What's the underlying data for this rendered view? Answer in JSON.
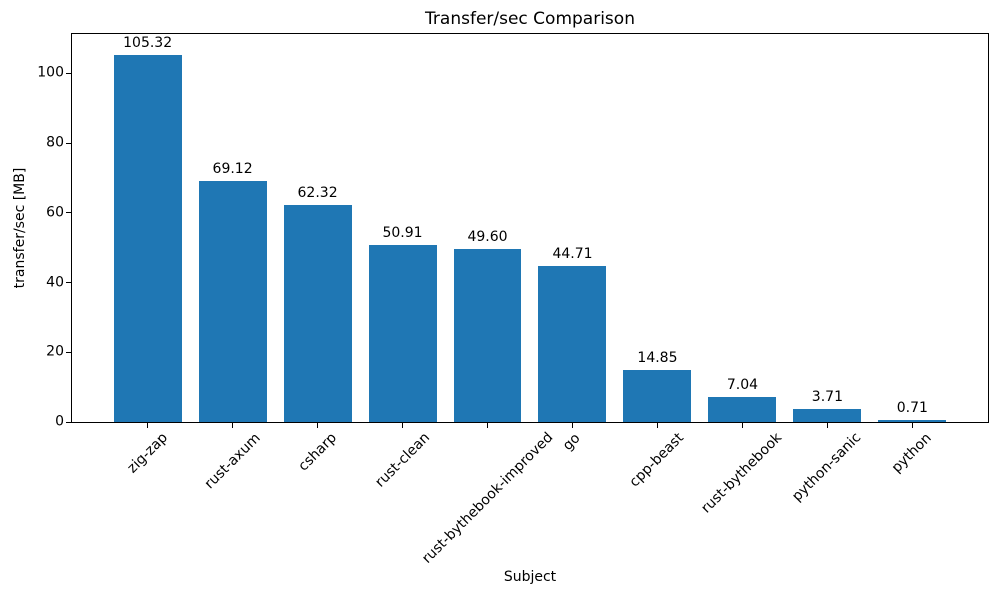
{
  "chart_data": {
    "type": "bar",
    "title": "Transfer/sec Comparison",
    "xlabel": "Subject",
    "ylabel": "transfer/sec [MB]",
    "categories": [
      "zig-zap",
      "rust-axum",
      "csharp",
      "rust-clean",
      "rust-bythebook-improved",
      "go",
      "cpp-beast",
      "rust-bythebook",
      "python-sanic",
      "python"
    ],
    "values": [
      105.32,
      69.12,
      62.32,
      50.91,
      49.6,
      44.71,
      14.85,
      7.04,
      3.71,
      0.71
    ],
    "value_labels": [
      "105.32",
      "69.12",
      "62.32",
      "50.91",
      "49.60",
      "44.71",
      "14.85",
      "7.04",
      "3.71",
      "0.71"
    ],
    "yticks": [
      "0",
      "20",
      "40",
      "60",
      "80",
      "100"
    ],
    "ylim": [
      0,
      111.3
    ],
    "bar_color": "#1f77b4",
    "grid": false,
    "legend": null,
    "x_tick_rotation_deg": 45
  }
}
